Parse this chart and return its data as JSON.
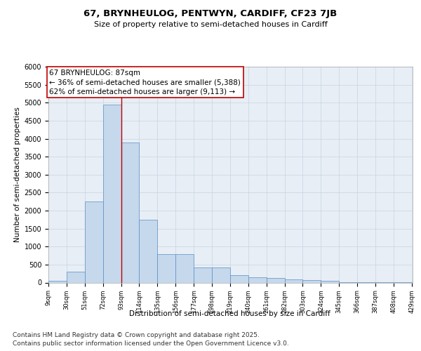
{
  "title": "67, BRYNHEULOG, PENTWYN, CARDIFF, CF23 7JB",
  "subtitle": "Size of property relative to semi-detached houses in Cardiff",
  "xlabel": "Distribution of semi-detached houses by size in Cardiff",
  "ylabel": "Number of semi-detached properties",
  "annotation_title": "67 BRYNHEULOG: 87sqm",
  "annotation_line1": "← 36% of semi-detached houses are smaller (5,388)",
  "annotation_line2": "62% of semi-detached houses are larger (9,113) →",
  "footer_line1": "Contains HM Land Registry data © Crown copyright and database right 2025.",
  "footer_line2": "Contains public sector information licensed under the Open Government Licence v3.0.",
  "property_size_sqm": 87,
  "bar_left_edges": [
    9,
    30,
    51,
    72,
    93,
    114,
    135,
    156,
    177,
    198,
    219,
    240,
    261,
    282,
    303,
    324,
    345,
    366,
    387,
    408
  ],
  "bar_widths": [
    21,
    21,
    21,
    21,
    21,
    21,
    21,
    21,
    21,
    21,
    21,
    21,
    21,
    21,
    21,
    21,
    21,
    21,
    21,
    21
  ],
  "bar_heights": [
    40,
    300,
    2250,
    4950,
    3900,
    1750,
    800,
    800,
    420,
    420,
    200,
    150,
    120,
    90,
    60,
    40,
    15,
    8,
    3,
    2
  ],
  "categories": [
    "9sqm",
    "30sqm",
    "51sqm",
    "72sqm",
    "93sqm",
    "114sqm",
    "135sqm",
    "156sqm",
    "177sqm",
    "198sqm",
    "219sqm",
    "240sqm",
    "261sqm",
    "282sqm",
    "303sqm",
    "324sqm",
    "345sqm",
    "366sqm",
    "387sqm",
    "408sqm",
    "429sqm"
  ],
  "ylim": [
    0,
    6000
  ],
  "yticks": [
    0,
    500,
    1000,
    1500,
    2000,
    2500,
    3000,
    3500,
    4000,
    4500,
    5000,
    5500,
    6000
  ],
  "bar_color": "#c5d8ec",
  "bar_edge_color": "#5b8ec4",
  "vline_color": "#c00000",
  "vline_x": 93,
  "grid_color": "#c8d4e0",
  "background_color": "#e8eef5",
  "title_fontsize": 9.5,
  "subtitle_fontsize": 8,
  "annotation_fontsize": 7.5,
  "footer_fontsize": 6.5
}
